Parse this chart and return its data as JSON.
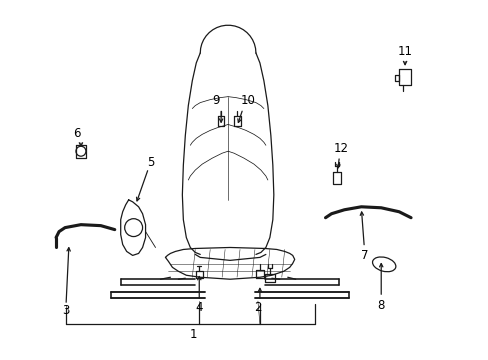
{
  "bg_color": "#ffffff",
  "line_color": "#1a1a1a",
  "label_color": "#000000",
  "figsize": [
    4.89,
    3.6
  ],
  "dpi": 100,
  "lw": 0.9,
  "label_fontsize": 8.5
}
